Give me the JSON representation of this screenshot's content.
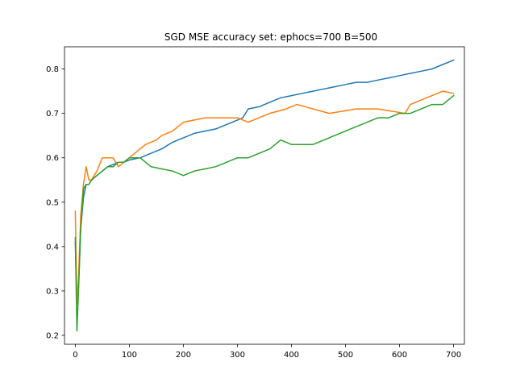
{
  "chart_data": {
    "type": "line",
    "title": "SGD MSE accuracy set: ephocs=700 B=500",
    "xlabel": "",
    "ylabel": "",
    "xlim": [
      -20,
      720
    ],
    "ylim": [
      0.18,
      0.85
    ],
    "x_ticks": [
      0,
      100,
      200,
      300,
      400,
      500,
      600,
      700
    ],
    "y_ticks": [
      0.2,
      0.3,
      0.4,
      0.5,
      0.6,
      0.7,
      0.8
    ],
    "grid": false,
    "legend": "none",
    "series": [
      {
        "color": "#1f77b4",
        "x": [
          0,
          3,
          6,
          10,
          15,
          20,
          25,
          30,
          40,
          50,
          60,
          70,
          80,
          90,
          100,
          120,
          140,
          160,
          180,
          200,
          220,
          240,
          260,
          280,
          300,
          310,
          320,
          340,
          360,
          380,
          400,
          420,
          440,
          460,
          480,
          500,
          520,
          540,
          560,
          580,
          600,
          620,
          640,
          660,
          680,
          690,
          700
        ],
        "values": [
          0.41,
          0.27,
          0.31,
          0.44,
          0.51,
          0.54,
          0.54,
          0.55,
          0.56,
          0.57,
          0.58,
          0.585,
          0.59,
          0.59,
          0.595,
          0.6,
          0.61,
          0.62,
          0.635,
          0.645,
          0.655,
          0.66,
          0.665,
          0.675,
          0.685,
          0.69,
          0.71,
          0.715,
          0.725,
          0.735,
          0.74,
          0.745,
          0.75,
          0.755,
          0.76,
          0.765,
          0.77,
          0.77,
          0.775,
          0.78,
          0.785,
          0.79,
          0.795,
          0.8,
          0.81,
          0.815,
          0.82
        ]
      },
      {
        "color": "#ff7f0e",
        "x": [
          0,
          3,
          6,
          10,
          15,
          20,
          25,
          30,
          40,
          50,
          60,
          70,
          80,
          100,
          110,
          130,
          150,
          160,
          180,
          200,
          240,
          300,
          320,
          360,
          390,
          410,
          470,
          520,
          560,
          610,
          620,
          640,
          660,
          680,
          700
        ],
        "values": [
          0.48,
          0.27,
          0.33,
          0.47,
          0.54,
          0.58,
          0.55,
          0.55,
          0.57,
          0.6,
          0.6,
          0.6,
          0.58,
          0.6,
          0.61,
          0.63,
          0.64,
          0.65,
          0.66,
          0.68,
          0.69,
          0.69,
          0.68,
          0.7,
          0.71,
          0.72,
          0.7,
          0.71,
          0.71,
          0.7,
          0.72,
          0.73,
          0.74,
          0.75,
          0.745
        ]
      },
      {
        "color": "#2ca02c",
        "x": [
          0,
          3,
          6,
          10,
          15,
          20,
          25,
          30,
          40,
          50,
          60,
          70,
          80,
          90,
          100,
          120,
          140,
          160,
          180,
          200,
          220,
          240,
          260,
          280,
          300,
          320,
          340,
          360,
          380,
          400,
          420,
          440,
          460,
          480,
          500,
          520,
          540,
          560,
          580,
          600,
          620,
          640,
          660,
          680,
          690,
          700
        ],
        "values": [
          0.42,
          0.21,
          0.3,
          0.44,
          0.53,
          0.54,
          0.54,
          0.55,
          0.56,
          0.57,
          0.58,
          0.58,
          0.59,
          0.59,
          0.6,
          0.6,
          0.58,
          0.575,
          0.57,
          0.56,
          0.57,
          0.575,
          0.58,
          0.59,
          0.6,
          0.6,
          0.61,
          0.62,
          0.64,
          0.63,
          0.63,
          0.63,
          0.64,
          0.65,
          0.66,
          0.67,
          0.68,
          0.69,
          0.69,
          0.7,
          0.7,
          0.71,
          0.72,
          0.72,
          0.73,
          0.74
        ]
      }
    ]
  }
}
